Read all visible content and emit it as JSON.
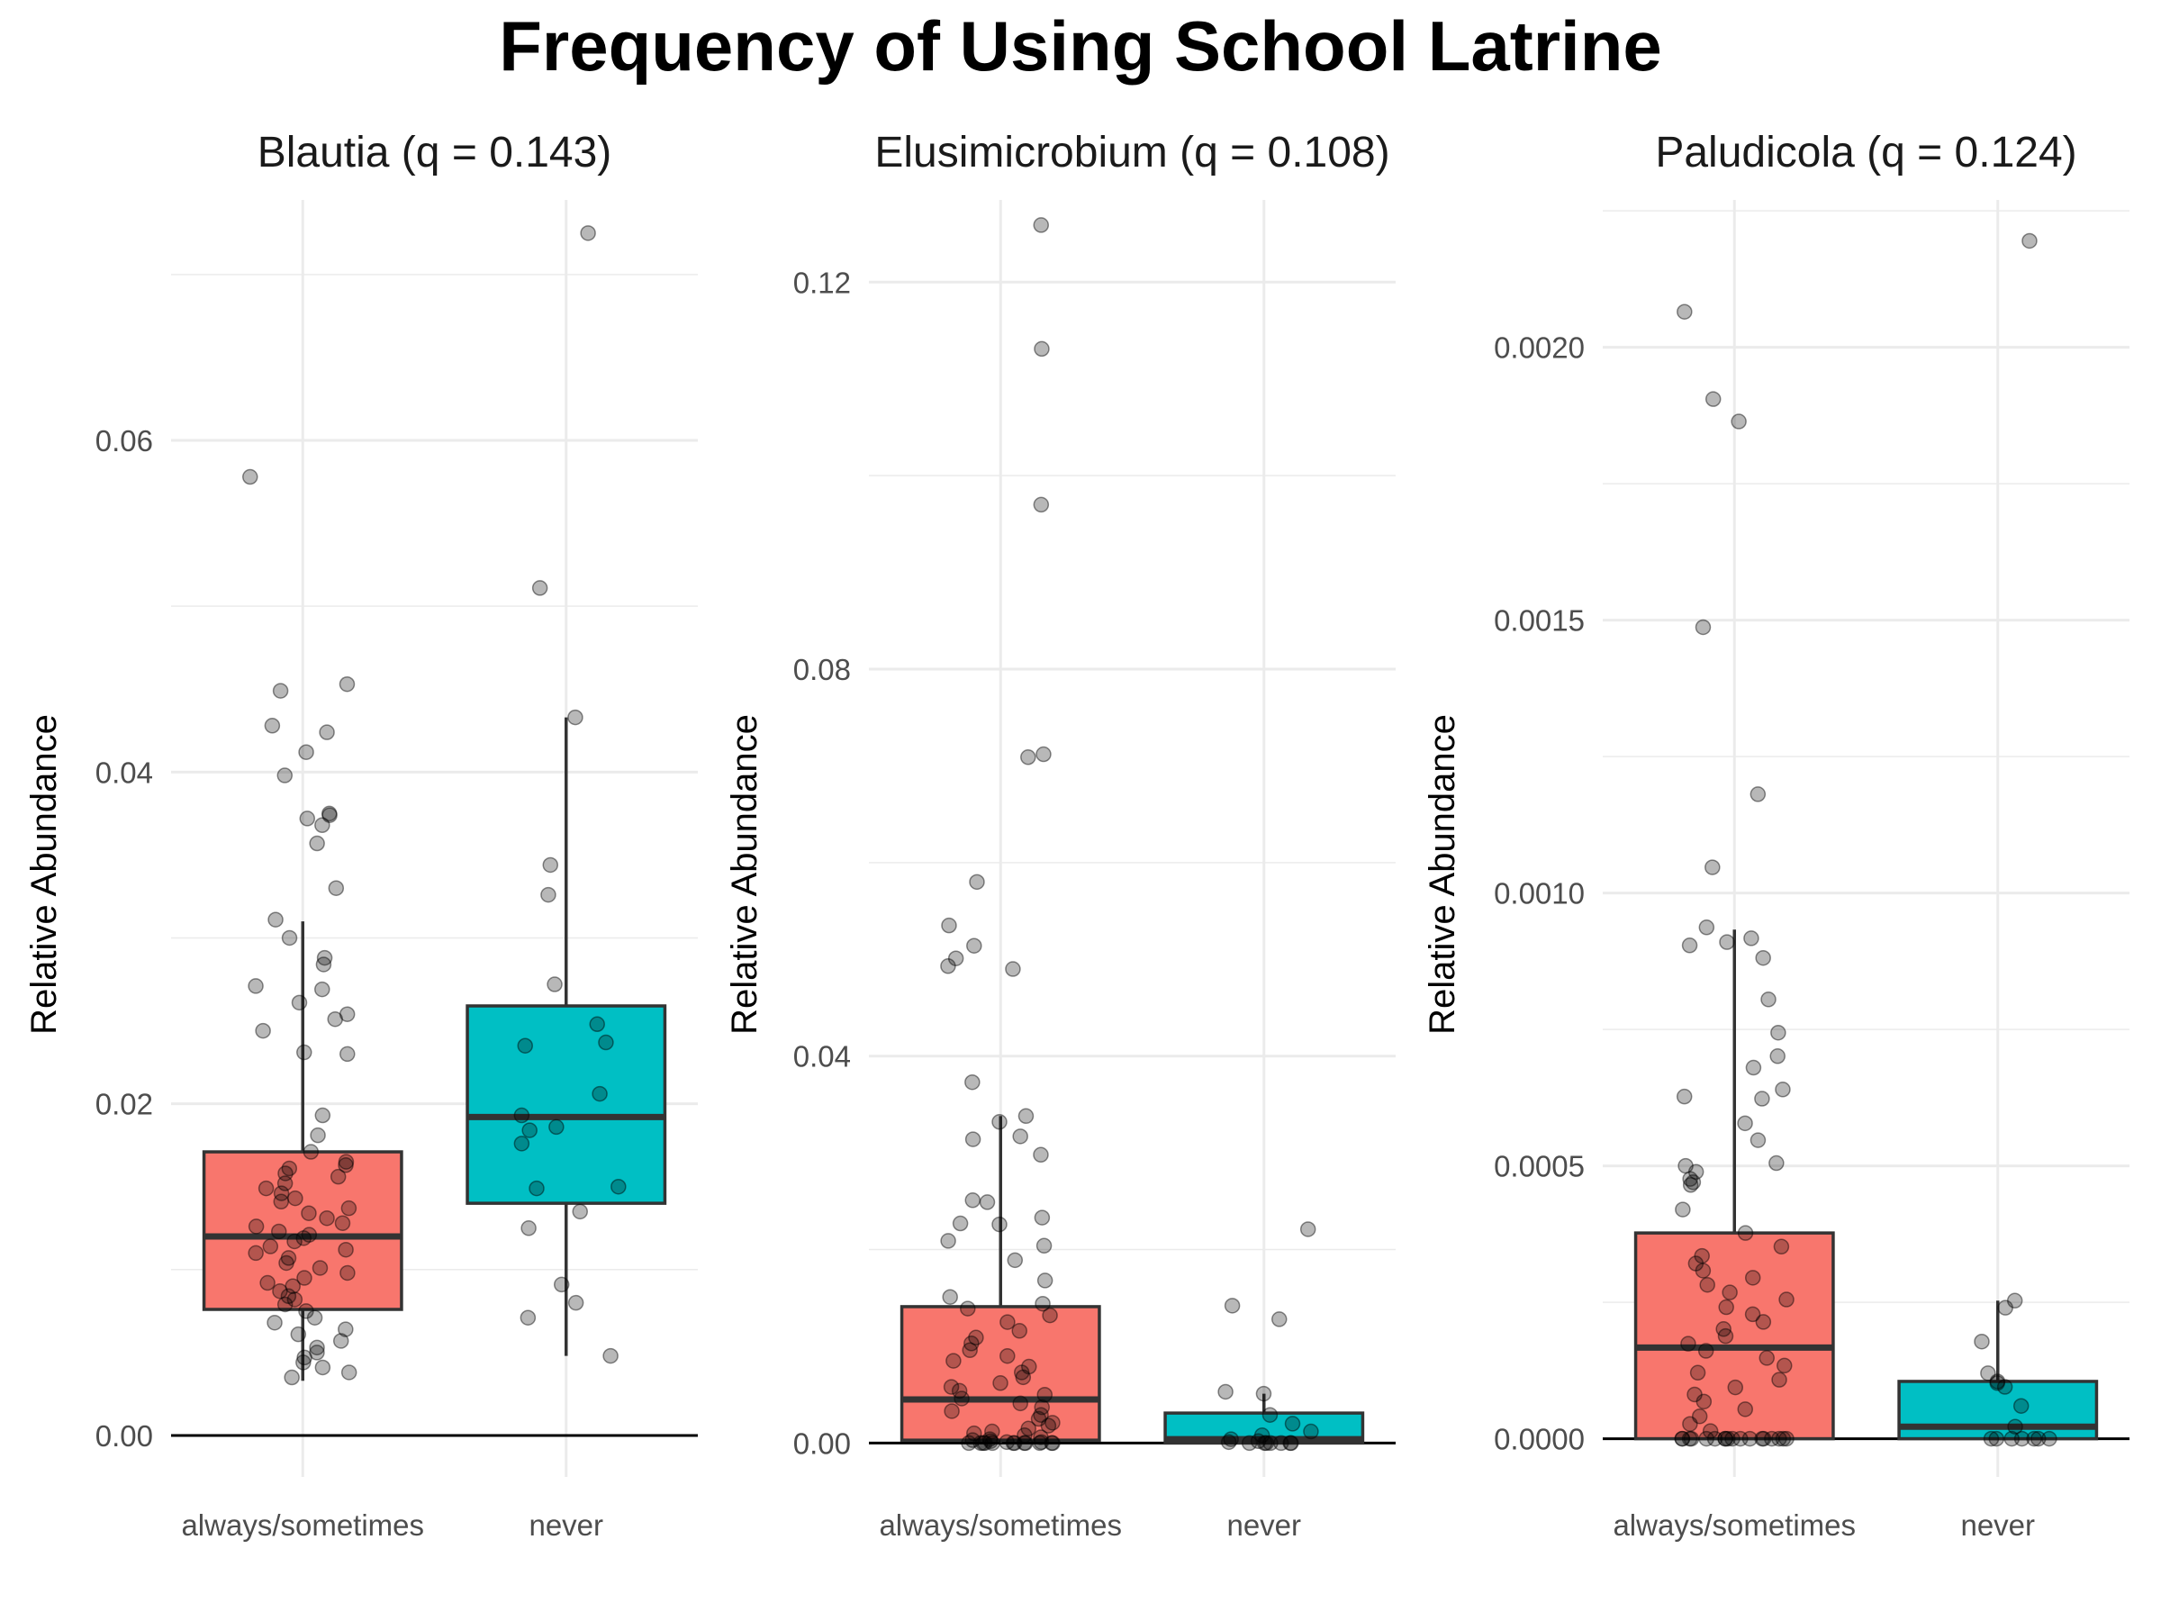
{
  "title": "Frequency of Using School Latrine",
  "colors": {
    "always/sometimes": "#F8766D",
    "never": "#00BFC4",
    "points": "#000000",
    "grid": "#ebebeb",
    "box_line": "#333333"
  },
  "chart_data": [
    {
      "type": "box",
      "title": "Blautia (q = 0.143)",
      "ylabel": "Relative Abundance",
      "xlabel": "",
      "categories": [
        "always/sometimes",
        "never"
      ],
      "y_ticks": [
        "0.00",
        "0.02",
        "0.04",
        "0.06"
      ],
      "ylim": [
        -0.0025,
        0.0745
      ],
      "grid": true,
      "boxes": [
        {
          "category": "always/sometimes",
          "q1": 0.0076,
          "median": 0.012,
          "q3": 0.0171,
          "whisker_low": 0.0033,
          "whisker_high": 0.031
        },
        {
          "category": "never",
          "q1": 0.014,
          "median": 0.0192,
          "q3": 0.0259,
          "whisker_low": 0.0048,
          "whisker_high": 0.0433
        }
      ],
      "points": [
        {
          "category": "always/sometimes",
          "values": [
            0.0578,
            0.0453,
            0.0449,
            0.0428,
            0.0424,
            0.0412,
            0.0398,
            0.0375,
            0.0374,
            0.0372,
            0.0368,
            0.0357,
            0.033,
            0.0311,
            0.03,
            0.0288,
            0.0284,
            0.0271,
            0.0269,
            0.0261,
            0.0254,
            0.0251,
            0.0244,
            0.0231,
            0.023,
            0.0193,
            0.0181,
            0.0171,
            0.0165,
            0.0163,
            0.0161,
            0.0158,
            0.0156,
            0.0152,
            0.0149,
            0.0146,
            0.0143,
            0.0141,
            0.0137,
            0.0134,
            0.0131,
            0.0128,
            0.0126,
            0.0123,
            0.0121,
            0.0119,
            0.0117,
            0.0114,
            0.0112,
            0.011,
            0.0107,
            0.0104,
            0.0101,
            0.0098,
            0.0095,
            0.0092,
            0.009,
            0.0087,
            0.0084,
            0.0082,
            0.0079,
            0.0075,
            0.0071,
            0.0068,
            0.0064,
            0.0061,
            0.0057,
            0.0053,
            0.005,
            0.0047,
            0.0044,
            0.0041,
            0.0038,
            0.0035
          ]
        },
        {
          "category": "never",
          "values": [
            0.0725,
            0.0511,
            0.0433,
            0.0344,
            0.0326,
            0.0272,
            0.0248,
            0.0237,
            0.0235,
            0.0206,
            0.0193,
            0.0186,
            0.0184,
            0.0176,
            0.015,
            0.0149,
            0.0135,
            0.0125,
            0.0091,
            0.008,
            0.0071,
            0.0048
          ]
        }
      ]
    },
    {
      "type": "box",
      "title": "Elusimicrobium (q = 0.108)",
      "ylabel": "Relative Abundance",
      "xlabel": "",
      "categories": [
        "always/sometimes",
        "never"
      ],
      "y_ticks": [
        "0.00",
        "0.04",
        "0.08",
        "0.12"
      ],
      "ylim": [
        -0.0035,
        0.1285
      ],
      "grid": true,
      "boxes": [
        {
          "category": "always/sometimes",
          "q1": 0.0003,
          "median": 0.0045,
          "q3": 0.0141,
          "whisker_low": 0.0,
          "whisker_high": 0.0338
        },
        {
          "category": "never",
          "q1": 0.0,
          "median": 0.0004,
          "q3": 0.0031,
          "whisker_low": 0.0,
          "whisker_high": 0.0051
        }
      ],
      "points": [
        {
          "category": "always/sometimes",
          "values": [
            0.1259,
            0.1131,
            0.097,
            0.0712,
            0.0709,
            0.058,
            0.0535,
            0.0514,
            0.0501,
            0.0493,
            0.049,
            0.0373,
            0.0338,
            0.0332,
            0.0317,
            0.0314,
            0.0298,
            0.0251,
            0.0249,
            0.0233,
            0.0227,
            0.0226,
            0.0209,
            0.0204,
            0.0189,
            0.0168,
            0.0151,
            0.0144,
            0.0139,
            0.0132,
            0.0125,
            0.0116,
            0.0109,
            0.0103,
            0.0096,
            0.009,
            0.0085,
            0.0079,
            0.0073,
            0.0068,
            0.0062,
            0.0058,
            0.0054,
            0.005,
            0.0046,
            0.0041,
            0.0037,
            0.0033,
            0.0029,
            0.0025,
            0.0021,
            0.0018,
            0.0015,
            0.0012,
            0.001,
            0.0008,
            0.0006,
            0.0004,
            0.0003,
            0.0002,
            0.0001,
            0.0001,
            0.0,
            0.0,
            0.0,
            0.0,
            0.0,
            0.0,
            0.0,
            0.0,
            0.0,
            0.0,
            0.0,
            0.0
          ]
        },
        {
          "category": "never",
          "values": [
            0.0221,
            0.0142,
            0.0128,
            0.0053,
            0.0051,
            0.0029,
            0.002,
            0.0012,
            0.0008,
            0.0004,
            0.0002,
            0.0001,
            0.0,
            0.0,
            0.0,
            0.0,
            0.0,
            0.0,
            0.0
          ]
        }
      ]
    },
    {
      "type": "box",
      "title": "Paludicola (q = 0.124)",
      "ylabel": "Relative Abundance",
      "xlabel": "",
      "categories": [
        "always/sometimes",
        "never"
      ],
      "y_ticks": [
        "0.0000",
        "0.0005",
        "0.0010",
        "0.0015",
        "0.0020"
      ],
      "ylim": [
        -7e-05,
        0.00227
      ],
      "grid": true,
      "boxes": [
        {
          "category": "always/sometimes",
          "q1": 0.0,
          "median": 0.000167,
          "q3": 0.000377,
          "whisker_low": 0.0,
          "whisker_high": 0.000933
        },
        {
          "category": "never",
          "q1": 0.0,
          "median": 2.2e-05,
          "q3": 0.000105,
          "whisker_low": 0.0,
          "whisker_high": 0.000253
        }
      ],
      "points": [
        {
          "category": "always/sometimes",
          "values": [
            0.002065,
            0.001905,
            0.001864,
            0.001487,
            0.001181,
            0.001047,
            0.000937,
            0.000917,
            0.00091,
            0.000904,
            0.000881,
            0.000805,
            0.000744,
            0.000701,
            0.00068,
            0.00064,
            0.000627,
            0.000623,
            0.000578,
            0.000547,
            0.000505,
            0.0005,
            0.000489,
            0.000476,
            0.00047,
            0.000465,
            0.00042,
            0.000377,
            0.000352,
            0.000335,
            0.000321,
            0.000308,
            0.000295,
            0.000282,
            0.000268,
            0.000255,
            0.000241,
            0.000228,
            0.000214,
            0.000201,
            0.000188,
            0.000174,
            0.000161,
            0.000148,
            0.000134,
            0.000121,
            0.000108,
            9.4e-05,
            8.1e-05,
            6.8e-05,
            5.4e-05,
            4.1e-05,
            2.7e-05,
            1.4e-05,
            0.0,
            0.0,
            0.0,
            0.0,
            0.0,
            0.0,
            0.0,
            0.0,
            0.0,
            0.0,
            0.0,
            0.0,
            0.0,
            0.0,
            0.0,
            0.0,
            0.0,
            0.0
          ]
        },
        {
          "category": "never",
          "values": [
            0.002195,
            0.000253,
            0.00024,
            0.000178,
            0.00012,
            0.000105,
            0.000102,
            9.5e-05,
            6e-05,
            2.2e-05,
            0.0,
            0.0,
            0.0,
            0.0,
            0.0,
            0.0,
            0.0
          ]
        }
      ]
    }
  ]
}
